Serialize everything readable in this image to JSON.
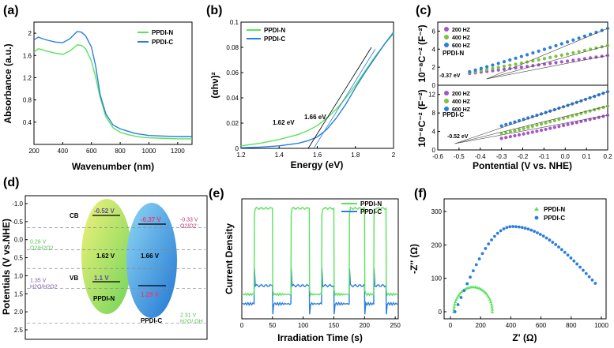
{
  "chart_data": [
    {
      "panel": "(a)",
      "type": "line",
      "xlabel": "Wavenumber (nm)",
      "ylabel": "Absorbance (a.u.)",
      "xlim": [
        200,
        1300
      ],
      "ylim": [
        0,
        2.2
      ],
      "xticks": [
        200,
        400,
        600,
        800,
        1000,
        1200
      ],
      "yticks": [
        0.4,
        0.8,
        1.2,
        1.6,
        2.0
      ],
      "legend": [
        "PPDI-N",
        "PPDI-C"
      ],
      "series": [
        {
          "name": "PPDI-N",
          "color": "#59e35a",
          "x": [
            200,
            230,
            260,
            300,
            350,
            400,
            450,
            500,
            530,
            560,
            600,
            630,
            660,
            700,
            750,
            800,
            850,
            900,
            950,
            1000,
            1100,
            1200,
            1300
          ],
          "y": [
            1.66,
            1.72,
            1.7,
            1.67,
            1.64,
            1.62,
            1.68,
            1.79,
            1.78,
            1.72,
            1.5,
            1.2,
            0.85,
            0.5,
            0.3,
            0.22,
            0.18,
            0.15,
            0.13,
            0.12,
            0.11,
            0.1,
            0.1
          ]
        },
        {
          "name": "PPDI-C",
          "color": "#2a7ee0",
          "x": [
            200,
            230,
            260,
            300,
            350,
            400,
            450,
            500,
            530,
            560,
            600,
            630,
            660,
            700,
            750,
            800,
            850,
            900,
            950,
            1000,
            1100,
            1200,
            1300
          ],
          "y": [
            1.88,
            1.93,
            1.9,
            1.87,
            1.84,
            1.83,
            1.9,
            2.03,
            2.02,
            1.95,
            1.75,
            1.4,
            0.9,
            0.55,
            0.35,
            0.28,
            0.24,
            0.2,
            0.18,
            0.16,
            0.15,
            0.14,
            0.14
          ]
        }
      ]
    },
    {
      "panel": "(b)",
      "type": "line",
      "xlabel": "Energy (eV)",
      "ylabel": "(αhν)²",
      "xlim": [
        1.2,
        2.0
      ],
      "ylim": [
        0,
        0.1
      ],
      "xticks": [
        1.2,
        1.4,
        1.6,
        1.8,
        2.0
      ],
      "yticks": [
        0.0,
        0.02,
        0.04,
        0.06,
        0.08,
        0.1
      ],
      "legend": [
        "PPDI-N",
        "PPDI-C"
      ],
      "annotations": [
        "1.66 eV",
        "1.62 eV"
      ],
      "series": [
        {
          "name": "PPDI-N",
          "color": "#59e35a",
          "x": [
            1.2,
            1.3,
            1.4,
            1.5,
            1.55,
            1.6,
            1.65,
            1.7,
            1.75,
            1.8,
            1.85,
            1.9,
            1.95,
            2.0
          ],
          "y": [
            0.002,
            0.004,
            0.007,
            0.011,
            0.014,
            0.018,
            0.024,
            0.031,
            0.04,
            0.05,
            0.061,
            0.072,
            0.082,
            0.091
          ]
        },
        {
          "name": "PPDI-C",
          "color": "#2a7ee0",
          "x": [
            1.2,
            1.3,
            1.4,
            1.5,
            1.55,
            1.6,
            1.65,
            1.7,
            1.75,
            1.8,
            1.85,
            1.9,
            1.95,
            2.0
          ],
          "y": [
            0.0005,
            0.001,
            0.002,
            0.004,
            0.006,
            0.009,
            0.015,
            0.024,
            0.035,
            0.048,
            0.06,
            0.071,
            0.082,
            0.092
          ]
        }
      ]
    },
    {
      "panel": "(c)",
      "type": "scatter",
      "xlabel": "Pontential (V vs. NHE)",
      "xlim": [
        -0.6,
        0.2
      ],
      "xticks": [
        -0.6,
        -0.5,
        -0.4,
        -0.3,
        -0.2,
        -0.1,
        0.0,
        0.1,
        0.2
      ],
      "subplots": [
        {
          "name": "PPDI-N",
          "ylabel": "10⁻⁸C⁻² (F⁻²)",
          "ylim": [
            0,
            7
          ],
          "yticks": [
            0,
            2,
            4,
            6
          ],
          "annotation": "-0.37 eV",
          "series": [
            {
              "name": "200 HZ",
              "color": "#a555c8",
              "x0": -0.45,
              "x1": 0.2,
              "y0": 1.3,
              "y1": 3.3
            },
            {
              "name": "400 HZ",
              "color": "#7dc43a",
              "x0": -0.45,
              "x1": 0.2,
              "y0": 1.4,
              "y1": 4.4
            },
            {
              "name": "600 HZ",
              "color": "#2a7ee0",
              "x0": -0.45,
              "x1": 0.2,
              "y0": 1.5,
              "y1": 6.3
            }
          ]
        },
        {
          "name": "PPDI-C",
          "ylabel": "10⁻⁸C⁻² (F⁻²)",
          "ylim": [
            0,
            14
          ],
          "yticks": [
            0,
            4,
            8,
            12
          ],
          "annotation": "-0.52 eV",
          "series": [
            {
              "name": "200 HZ",
              "color": "#a555c8",
              "x0": -0.3,
              "x1": 0.2,
              "y0": 2.5,
              "y1": 7.5
            },
            {
              "name": "400 HZ",
              "color": "#7dc43a",
              "x0": -0.3,
              "x1": 0.2,
              "y0": 3.5,
              "y1": 9.5
            },
            {
              "name": "600 HZ",
              "color": "#2a7ee0",
              "x0": -0.3,
              "x1": 0.2,
              "y0": 5.2,
              "y1": 12.6
            }
          ]
        }
      ]
    },
    {
      "panel": "(d)",
      "type": "diagram",
      "ylabel": "Potentials (V vs.NHE)",
      "ylim": [
        -1.0,
        2.5
      ],
      "yticks": [
        -1.0,
        -0.5,
        0.0,
        0.5,
        1.0,
        1.5,
        2.0,
        2.5
      ],
      "cb_label": "CB",
      "vb_label": "VB",
      "materials": [
        {
          "name": "PPDI-N",
          "cb": "-0.52 V",
          "vb": "1.1 V",
          "gap": "1.62 V"
        },
        {
          "name": "PPDI-C",
          "cb": "-0.37 V",
          "vb": "1.29 V",
          "gap": "1.66 V"
        }
      ],
      "reference_levels": [
        {
          "value": "-0.33 V",
          "couple": "O2/O2⁻",
          "color": "#c0397a"
        },
        {
          "value": "0.28 V",
          "couple": "O2/H2O2",
          "color": "#59c35a"
        },
        {
          "value": "1.35 V",
          "couple": "H2O/H2O2",
          "color": "#7a5aa0"
        },
        {
          "value": "2.31 V",
          "couple": "H2O/ OH",
          "color": "#59c35a"
        }
      ]
    },
    {
      "panel": "(e)",
      "type": "line",
      "xlabel": "Irradiation Time (s)",
      "ylabel": "Current Density",
      "xlim": [
        0,
        255
      ],
      "xticks": [
        0,
        50,
        100,
        150,
        200,
        250
      ],
      "legend": [
        "PPDI-N",
        "PPDI-C"
      ],
      "on_intervals": [
        [
          20,
          50
        ],
        [
          80,
          110
        ],
        [
          130,
          150
        ],
        [
          175,
          200
        ],
        [
          215,
          235
        ]
      ],
      "series": [
        {
          "name": "PPDI-N",
          "color": "#59e35a"
        },
        {
          "name": "PPDI-C",
          "color": "#2a7ee0"
        }
      ]
    },
    {
      "panel": "(f)",
      "type": "scatter",
      "xlabel": "Z' (Ω)",
      "ylabel": "-Z'' (Ω)",
      "xlim": [
        0,
        1000
      ],
      "ylim": [
        0,
        300
      ],
      "xticks": [
        0,
        200,
        400,
        600,
        800,
        1000
      ],
      "yticks": [
        0,
        100,
        200,
        300
      ],
      "legend": [
        "PPDI-N",
        "PPDI-C"
      ],
      "series": [
        {
          "name": "PPDI-N",
          "color": "#59e35a",
          "marker": "triangle",
          "center": 150,
          "radius": 128,
          "peak": 75
        },
        {
          "name": "PPDI-C",
          "color": "#2a7ee0",
          "marker": "circle",
          "x_start": 30,
          "x_peak": 410,
          "peak": 255,
          "x_end": 960,
          "y_end": 85
        }
      ]
    }
  ]
}
